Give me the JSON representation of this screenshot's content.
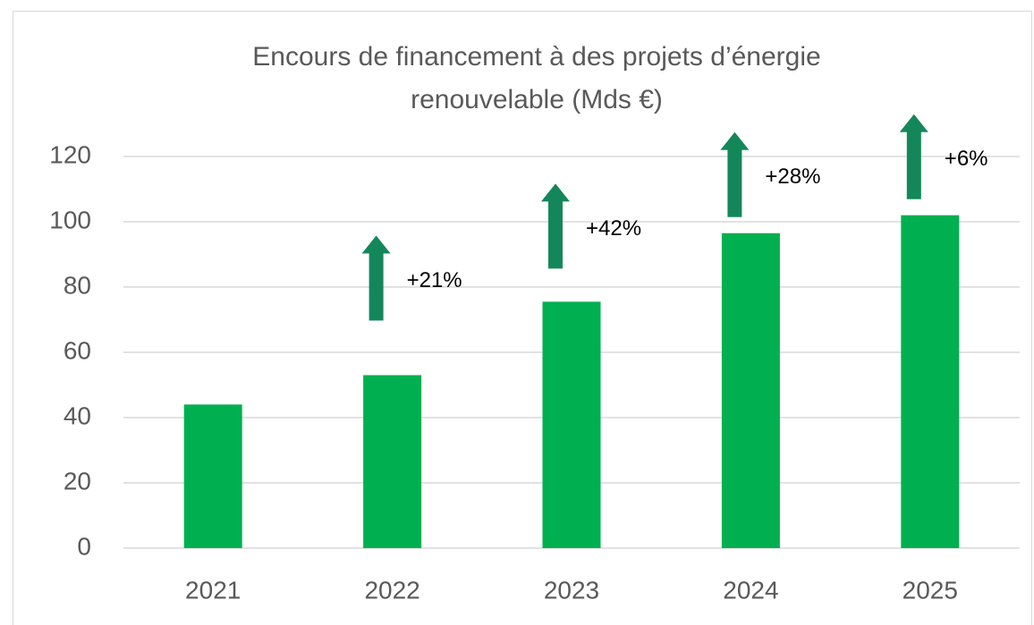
{
  "chart_data": {
    "type": "bar",
    "title": "Encours de financement à des projets d’énergie renouvelable (Mds €)",
    "categories": [
      "2021",
      "2022",
      "2023",
      "2024",
      "2025"
    ],
    "values": [
      44,
      53,
      75.5,
      96.5,
      102
    ],
    "annotations": [
      null,
      "+21%",
      "+42%",
      "+28%",
      "+6%"
    ],
    "color": "#00b050",
    "arrow_color": "#14875a",
    "ylim": [
      0,
      120
    ],
    "yticks": [
      0,
      20,
      40,
      60,
      80,
      100,
      120
    ],
    "grid": true
  }
}
